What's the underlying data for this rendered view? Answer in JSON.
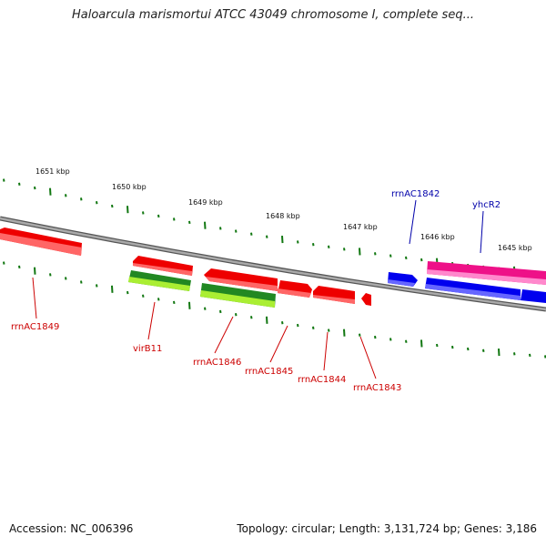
{
  "title": "Haloarcula marismortui ATCC 43049 chromosome I, complete seq...",
  "footer": {
    "accession": "Accession: NC_006396",
    "summary": "Topology: circular; Length: 3,131,724 bp; Genes: 3,186"
  },
  "scale_labels": [
    "1651 kbp",
    "1650 kbp",
    "1649 kbp",
    "1648 kbp",
    "1647 kbp",
    "1646 kbp",
    "1645 kbp"
  ],
  "genes": [
    {
      "name": "rrnAC1849",
      "color": "#cc0000"
    },
    {
      "name": "virB11",
      "color": "#cc0000"
    },
    {
      "name": "rrnAC1846",
      "color": "#cc0000"
    },
    {
      "name": "rrnAC1845",
      "color": "#cc0000"
    },
    {
      "name": "rrnAC1844",
      "color": "#cc0000"
    },
    {
      "name": "rrnAC1843",
      "color": "#cc0000"
    },
    {
      "name": "rrnAC1842",
      "color": "#0000aa"
    },
    {
      "name": "yhcR2",
      "color": "#0000aa"
    }
  ],
  "colors": {
    "forward_red": "#ee0000",
    "green_dark": "#228822",
    "green_light": "#aaee33",
    "blue": "#0000ee",
    "magenta": "#ee1188",
    "backbone": "#888888",
    "tick": "#117711"
  }
}
